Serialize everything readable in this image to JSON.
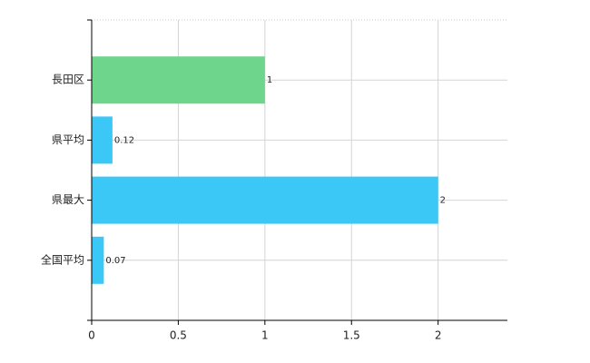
{
  "chart_data": {
    "type": "hbar",
    "categories": [
      "長田区",
      "県平均",
      "県最大",
      "全国平均"
    ],
    "values": [
      1,
      0.12,
      2,
      0.07
    ],
    "colors": [
      "#6dd58c",
      "#3cc8f6",
      "#3cc8f6",
      "#3cc8f6"
    ],
    "xlim": [
      0,
      2.4
    ],
    "xticks": [
      0,
      0.5,
      1,
      1.5,
      2
    ],
    "grid": true
  }
}
